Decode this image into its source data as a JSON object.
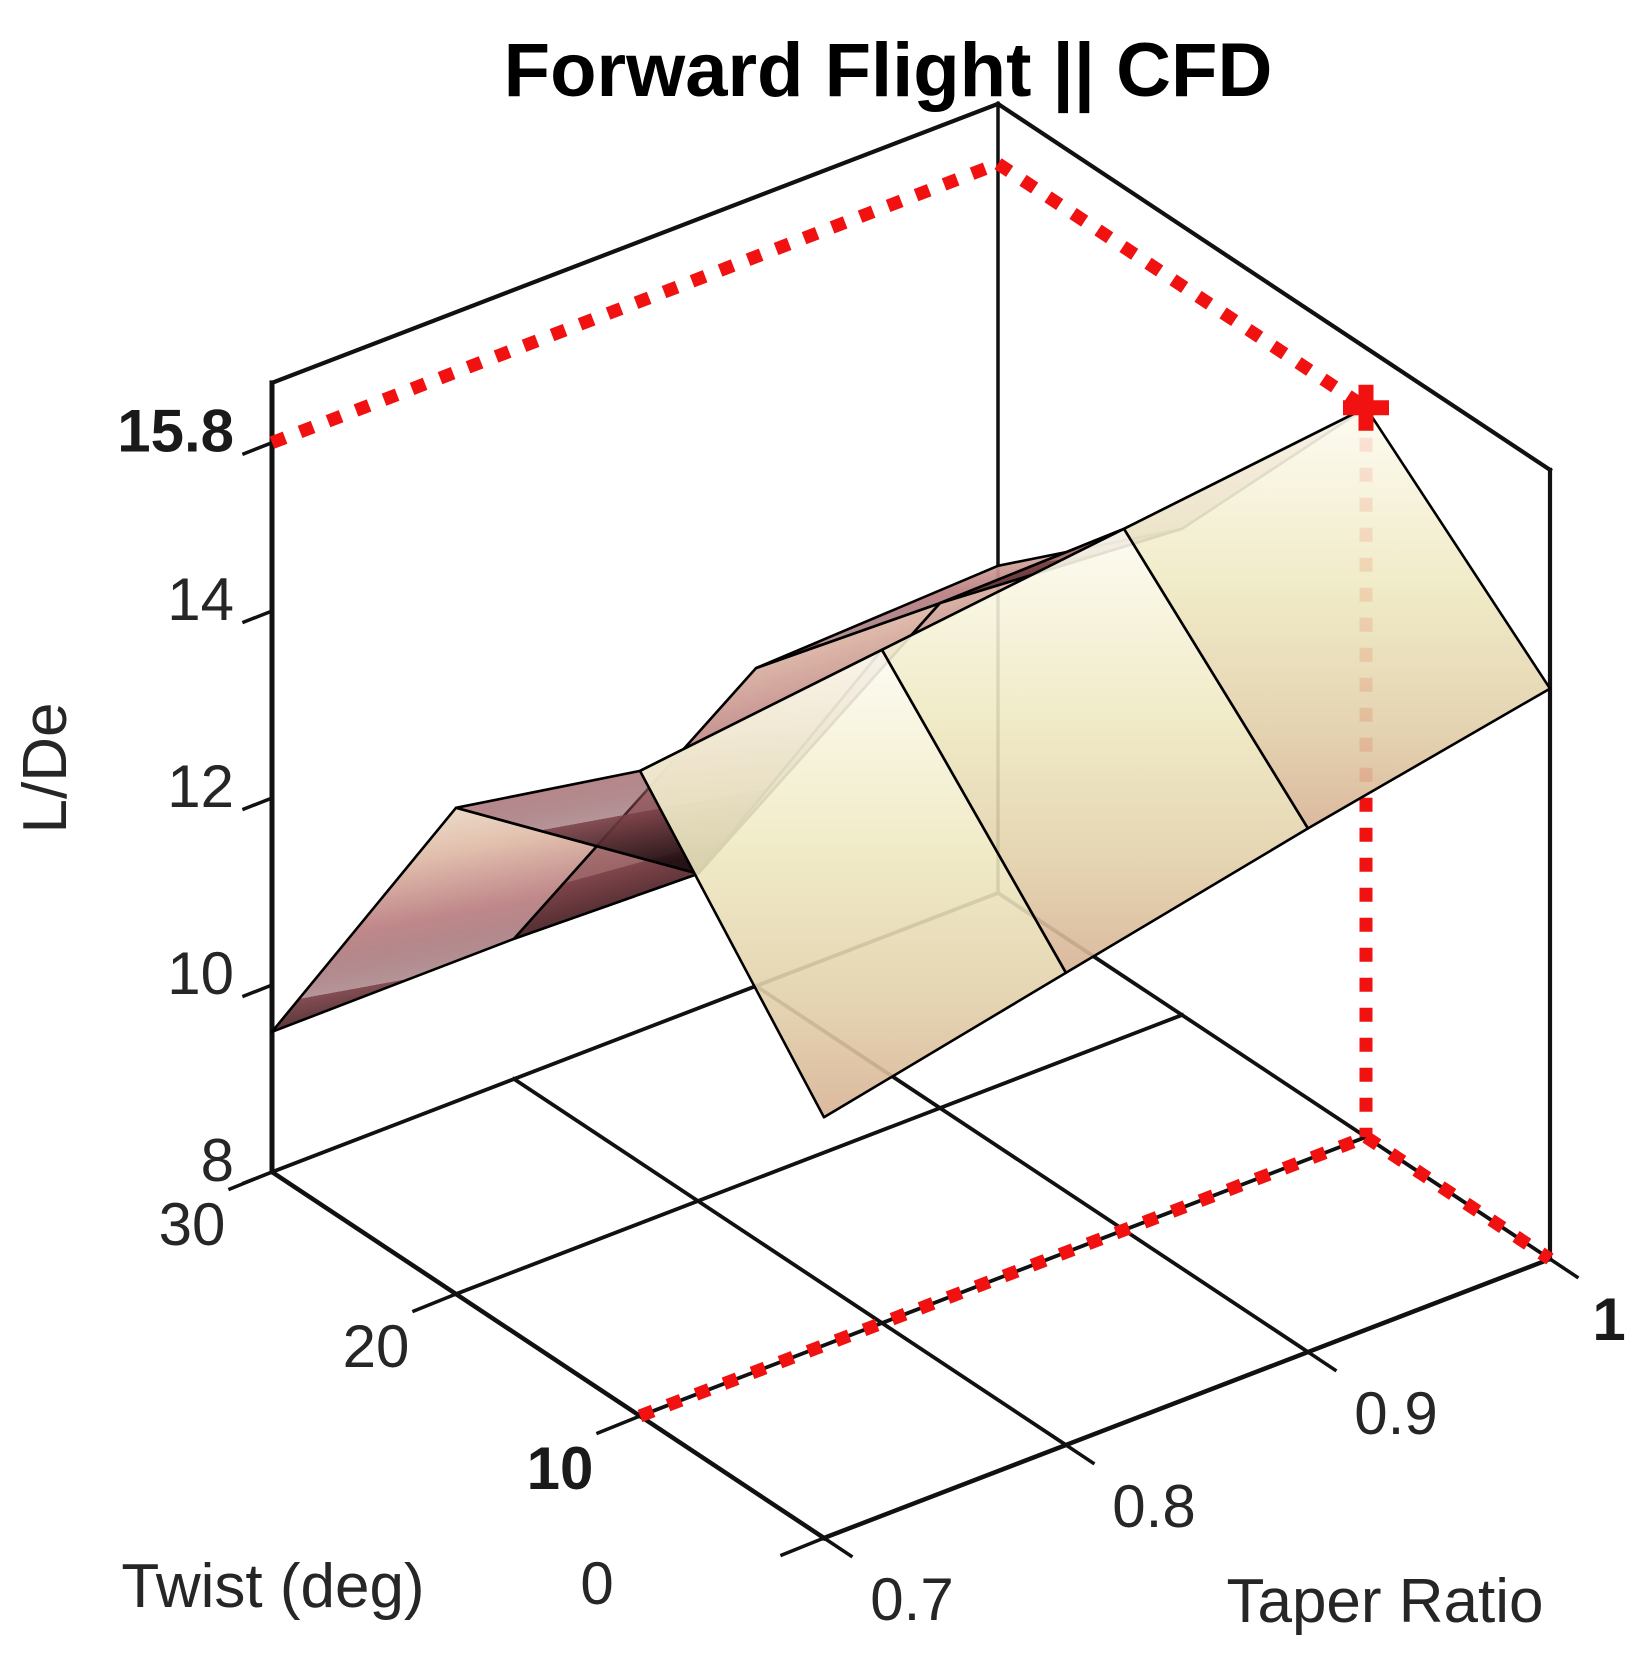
{
  "title": "Forward Flight || CFD",
  "axes": {
    "z": {
      "label": "L/De",
      "ticks": [
        {
          "value": 8,
          "label": "8",
          "bold": false
        },
        {
          "value": 10,
          "label": "10",
          "bold": false
        },
        {
          "value": 12,
          "label": "12",
          "bold": false
        },
        {
          "value": 14,
          "label": "14",
          "bold": false
        },
        {
          "value": 15.8,
          "label": "15.8",
          "bold": true
        }
      ]
    },
    "twist": {
      "label": "Twist (deg)",
      "ticks": [
        {
          "value": 30,
          "label": "30",
          "bold": false
        },
        {
          "value": 20,
          "label": "20",
          "bold": false
        },
        {
          "value": 10,
          "label": "10",
          "bold": true
        },
        {
          "value": 0,
          "label": "0",
          "bold": false
        }
      ]
    },
    "taper": {
      "label": "Taper Ratio",
      "ticks": [
        {
          "value": 0.7,
          "label": "0.7",
          "bold": false
        },
        {
          "value": 0.8,
          "label": "0.8",
          "bold": false
        },
        {
          "value": 0.9,
          "label": "0.9",
          "bold": false
        },
        {
          "value": 1,
          "label": "1",
          "bold": true
        }
      ]
    }
  },
  "chart_data": {
    "type": "surface",
    "title": "Forward Flight || CFD",
    "xlabel": "Taper Ratio",
    "ylabel": "Twist (deg)",
    "zlabel": "L/De",
    "taper_values": [
      0.7,
      0.8,
      0.9,
      1.0
    ],
    "twist_values": [
      0,
      10,
      20,
      30
    ],
    "z_grid_rows_by_twist": [
      [
        12.5,
        13.05,
        13.6,
        14.1
      ],
      [
        14.9,
        15.2,
        15.5,
        15.8
      ],
      [
        13.2,
        11.5,
        13.4,
        13.2
      ],
      [
        9.5,
        9.5,
        11.4,
        11.5
      ]
    ],
    "zlim": [
      8,
      16.44
    ],
    "grid": true,
    "legend_position": "none",
    "optimum": {
      "twist_deg": 10,
      "taper_ratio": 1.0,
      "l_over_de": 15.8,
      "marker": "plus",
      "projection_lines": "red dotted lines project the optimum onto the Twist axis, Taper axis and the L/De = 15.8 level on the back walls"
    }
  },
  "colors": {
    "optimum_red": "#f21111",
    "box_line": "#111111",
    "mesh_edge": "#000000",
    "surface_front_top": "#fdfbf1",
    "surface_front_mid": "#efe9c2",
    "surface_front_bottom": "#d8b294",
    "surface_back_top": "#f3ecd9",
    "surface_back_mid": "#bb7f82",
    "surface_back_dark": "#200e11",
    "tick_text": "#262626"
  }
}
